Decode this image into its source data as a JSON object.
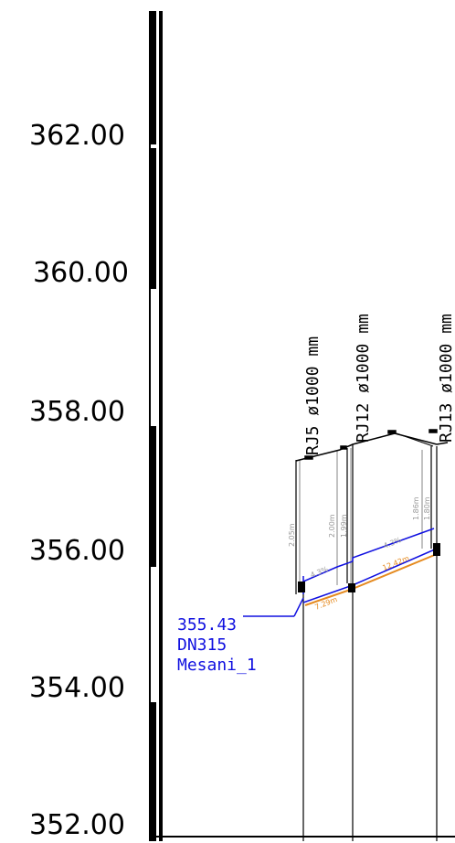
{
  "elevation_axis": {
    "ticks": [
      {
        "label": "362.00",
        "value": 362
      },
      {
        "label": "360.00",
        "value": 360
      },
      {
        "label": "358.00",
        "value": 358
      },
      {
        "label": "356.00",
        "value": 356
      },
      {
        "label": "354.00",
        "value": 354
      },
      {
        "label": "352.00",
        "value": 352
      }
    ]
  },
  "manholes": [
    {
      "label": "RJ5 ø1000 mm",
      "depth_label": "2.05m"
    },
    {
      "label": "RJ12 ø1000 mm",
      "depth_label_1": "2.00m",
      "depth_label_2": "1.99m"
    },
    {
      "label": "RJ13 ø1000 mm",
      "depth_label_1": "1.86m",
      "depth_label_2": "1.80m"
    }
  ],
  "segments": [
    {
      "slope": "4.3%",
      "length": "7.29m"
    },
    {
      "slope": "4.3%",
      "length": "12.42m"
    }
  ],
  "connection": {
    "elevation": "355.43",
    "diameter": "DN315",
    "name": "Mesani_1"
  },
  "colors": {
    "pipe_blue": "#1010e0",
    "pipe_orange": "#e58a1f",
    "wall_grey": "#9a9a9a"
  }
}
